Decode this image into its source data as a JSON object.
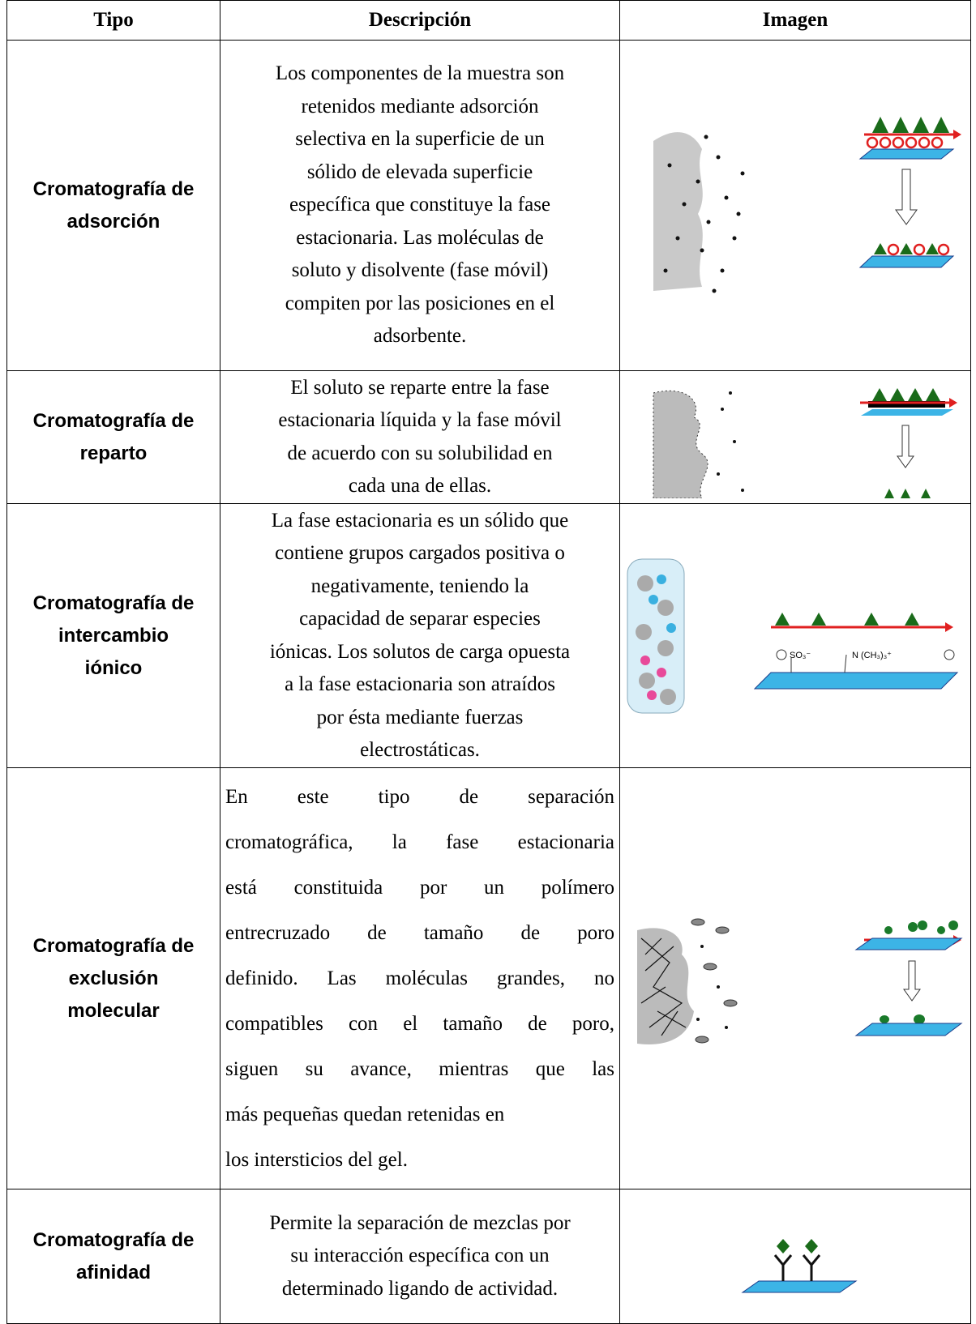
{
  "table": {
    "header": [
      "Tipo",
      "Descripción",
      "Imagen"
    ],
    "rows": [
      {
        "type": [
          "Cromatografía de",
          "adsorción"
        ],
        "description": [
          "Los componentes de la muestra son",
          "retenidos mediante adsorción",
          "selectiva en la superficie de un",
          "sólido de elevada superficie",
          "específica que constituye la fase",
          "estacionaria. Las moléculas de",
          "soluto y disolvente (fase móvil)",
          "compiten por las posiciones en el",
          "adsorbente."
        ]
      },
      {
        "type": [
          "Cromatografía de",
          "reparto"
        ],
        "description": [
          "El soluto se reparte entre la fase",
          "estacionaria líquida y la fase móvil",
          "de acuerdo con su solubilidad en",
          "cada una de ellas."
        ]
      },
      {
        "type": [
          "Cromatografía de",
          "intercambio",
          "iónico"
        ],
        "description": [
          "La fase estacionaria es un sólido que",
          "contiene grupos cargados positiva o",
          "negativamente, teniendo la",
          "capacidad de separar especies",
          "iónicas. Los solutos de carga opuesta",
          "a la fase estacionaria son atraídos",
          "por ésta mediante fuerzas",
          "electrostáticas."
        ],
        "image_labels": [
          "SO₃⁻",
          "N (CH₃)₃⁺"
        ]
      },
      {
        "type": [
          "Cromatografía de",
          "exclusión",
          "molecular"
        ],
        "description": [
          "En este tipo de separación",
          "cromatográfica, la fase estacionaria",
          "está constituida por un polímero",
          "entrecruzado de tamaño de poro",
          "definido. Las moléculas grandes, no",
          "compatibles con el tamaño de poro,",
          "siguen su avance, mientras que las",
          "más pequeñas quedan retenidas en",
          "los intersticios del gel."
        ]
      },
      {
        "type": [
          "Cromatografía de",
          "afinidad"
        ],
        "description": [
          "Permite la separación de mezclas por",
          "su interacción específica con un",
          "determinado ligando de actividad."
        ]
      }
    ]
  }
}
